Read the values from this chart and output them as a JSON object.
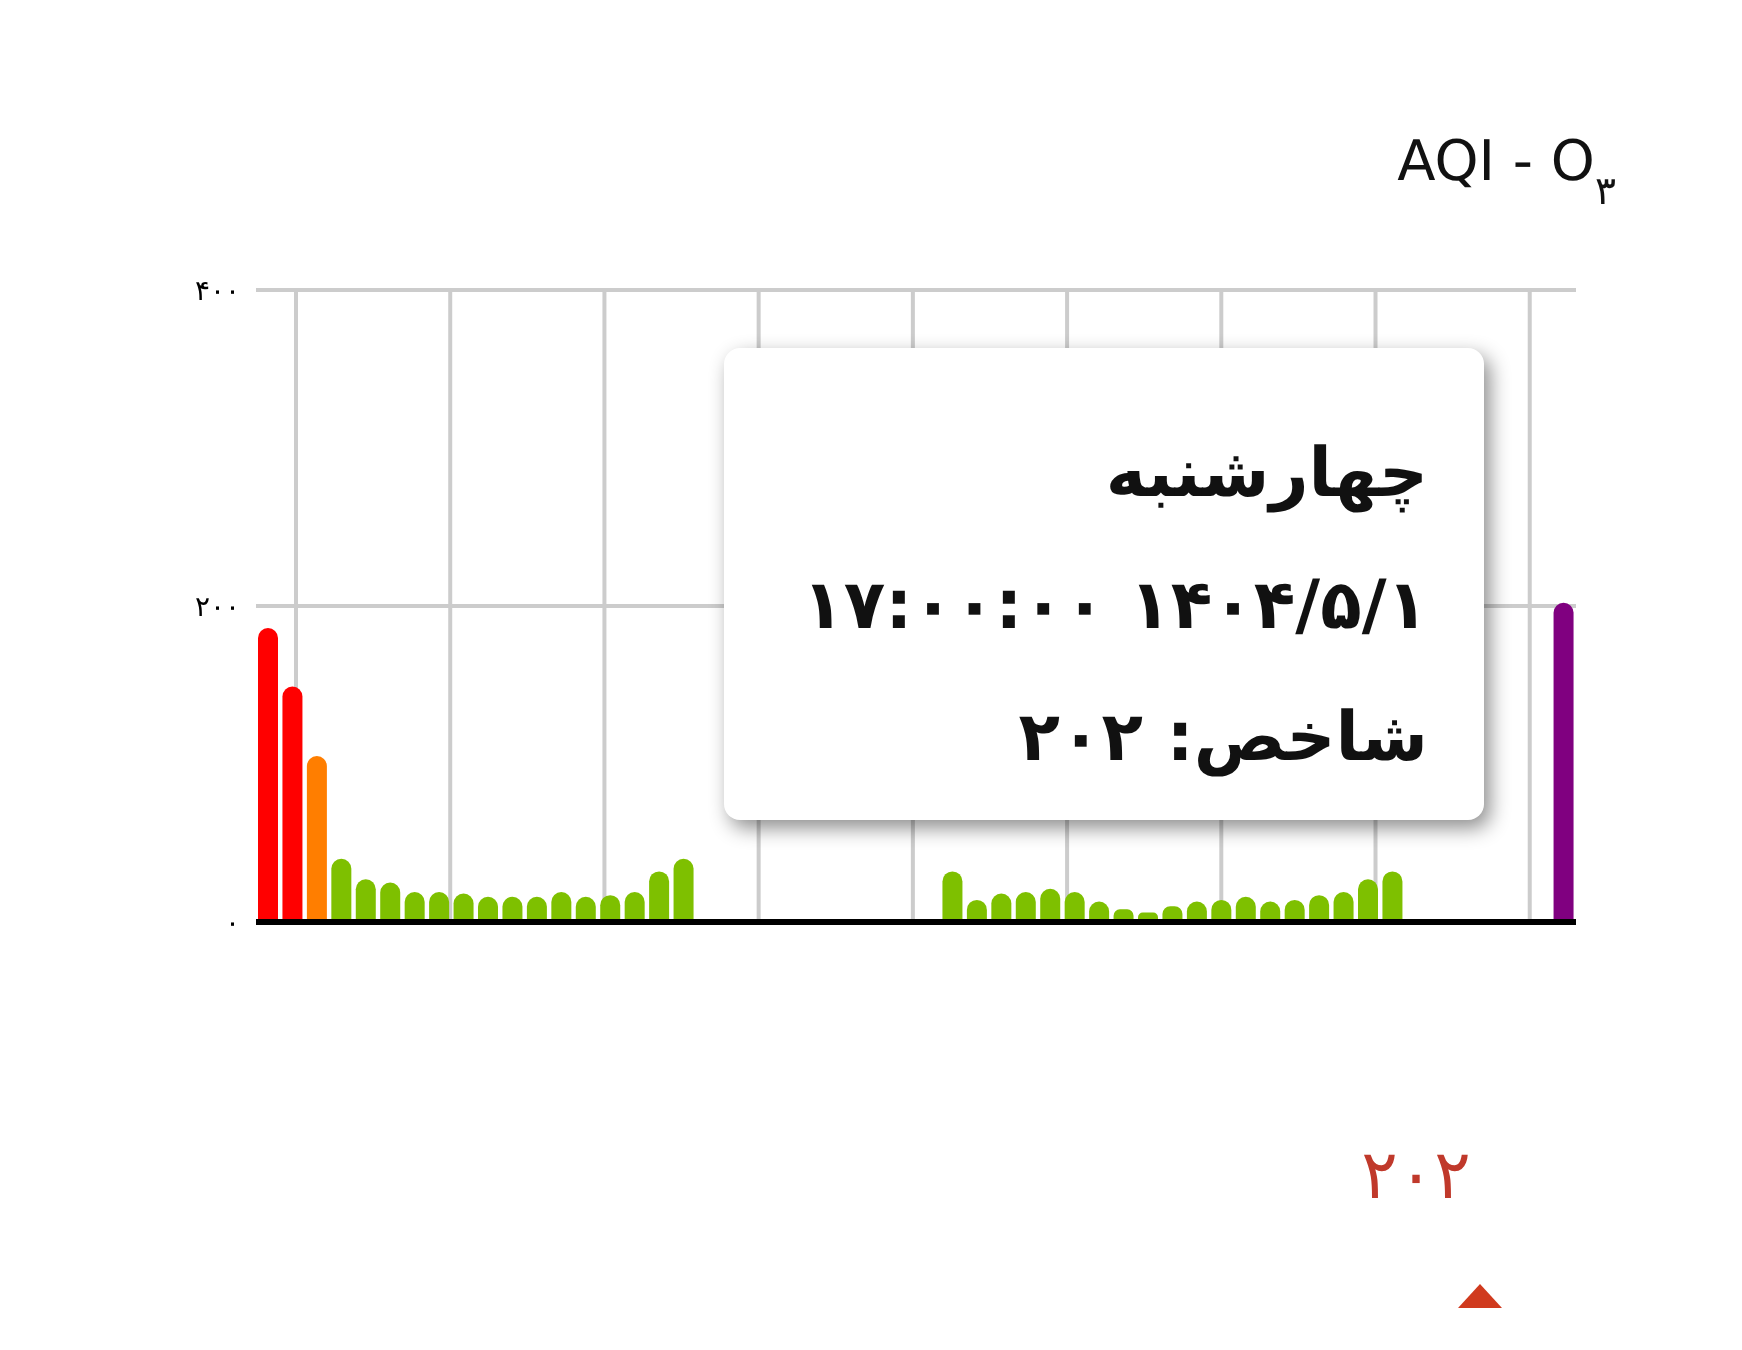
{
  "chart_data": {
    "type": "bar",
    "title": "AQI - O$_{۳}$",
    "categories": [
      null,
      null,
      null,
      null,
      null,
      null,
      null,
      null,
      null,
      null,
      null,
      null,
      null,
      null,
      null,
      null,
      null,
      null,
      null,
      null,
      null,
      null,
      null,
      null,
      null,
      null,
      null,
      null,
      null,
      null,
      null,
      null,
      null,
      null,
      null,
      null,
      null,
      null,
      null,
      null,
      null,
      null,
      null,
      null,
      null,
      null,
      null,
      null,
      null,
      null,
      null,
      null,
      null,
      null
    ],
    "values": [
      186,
      149,
      105,
      40,
      27,
      25,
      19,
      19,
      18,
      16,
      16,
      16,
      19,
      16,
      17,
      19,
      32,
      40,
      null,
      null,
      null,
      null,
      null,
      null,
      null,
      null,
      null,
      null,
      32,
      14,
      18,
      19,
      21,
      19,
      13,
      8,
      6,
      10,
      13,
      14,
      16,
      13,
      14,
      17,
      19,
      27,
      32,
      null,
      null,
      null,
      null,
      null,
      null,
      202
    ],
    "colors": [
      "#ff0000",
      "#ff0000",
      "#ff7e00",
      "#7ec000",
      "#7ec000",
      "#7ec000",
      "#7ec000",
      "#7ec000",
      "#7ec000",
      "#7ec000",
      "#7ec000",
      "#7ec000",
      "#7ec000",
      "#7ec000",
      "#7ec000",
      "#7ec000",
      "#7ec000",
      "#7ec000",
      "#ffd000",
      "#ffd000",
      "#ffd000",
      "#ff7e00",
      "#ff0000",
      "#ff0000",
      "#ff0000",
      "#ff7e00",
      "#ff7e00",
      "#ffd000",
      "#7ec000",
      "#7ec000",
      "#7ec000",
      "#7ec000",
      "#7ec000",
      "#7ec000",
      "#7ec000",
      "#7ec000",
      "#7ec000",
      "#7ec000",
      "#7ec000",
      "#7ec000",
      "#7ec000",
      "#7ec000",
      "#7ec000",
      "#7ec000",
      "#7ec000",
      "#7ec000",
      "#7ec000",
      "#ffd000",
      "#ff7e00",
      "#ff7e00",
      "#ff0000",
      "#ff0000",
      "#ff0000",
      "#800080"
    ],
    "ylim": [
      0,
      400
    ],
    "yticks": [
      {
        "value": 0,
        "label": "۰"
      },
      {
        "value": 200,
        "label": "۲۰۰"
      },
      {
        "value": 400,
        "label": "۴۰۰"
      }
    ],
    "grid": true,
    "annotations": [
      "چهارشنبه",
      "۱۴۰۴/۵/۱ ۱۷:۰۰:۰۰",
      "شاخص: ۲۰۲",
      "۲۰۲"
    ]
  }
}
